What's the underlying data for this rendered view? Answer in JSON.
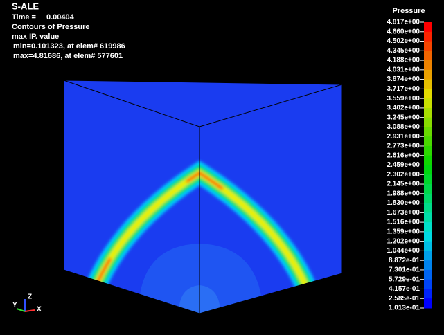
{
  "header": {
    "title": "S-ALE",
    "time_label": "Time =",
    "time_value": "0.00404",
    "contour": "Contours of Pressure",
    "mode": "max IP. value",
    "min": "min=0.101323, at elem# 619986",
    "max": "max=4.81686, at elem# 577601"
  },
  "legend": {
    "title": "Pressure",
    "labels": [
      "4.817e+00",
      "4.660e+00",
      "4.502e+00",
      "4.345e+00",
      "4.188e+00",
      "4.031e+00",
      "3.874e+00",
      "3.717e+00",
      "3.559e+00",
      "3.402e+00",
      "3.245e+00",
      "3.088e+00",
      "2.931e+00",
      "2.773e+00",
      "2.616e+00",
      "2.459e+00",
      "2.302e+00",
      "2.145e+00",
      "1.988e+00",
      "1.830e+00",
      "1.673e+00",
      "1.516e+00",
      "1.359e+00",
      "1.202e+00",
      "1.044e+00",
      "8.872e-01",
      "7.301e-01",
      "5.729e-01",
      "4.157e-01",
      "2.585e-01",
      "1.013e-01"
    ]
  },
  "triad": {
    "z": "Z",
    "y": "Y",
    "x": "X"
  }
}
